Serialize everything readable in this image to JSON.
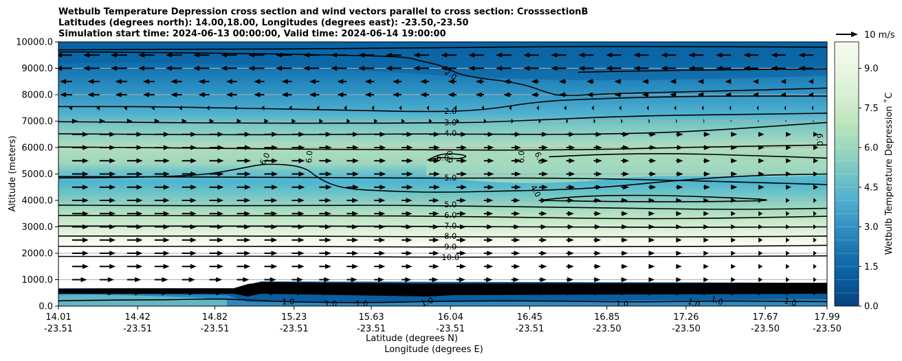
{
  "chart_data": {
    "type": "heatmap",
    "title_lines": [
      "Wetbulb Temperature Depression cross section and wind vectors parallel to cross section: CrosssectionB",
      "Latitudes (degrees north): 14.00,18.00, Longitudes (degrees east): -23.50,-23.50",
      "Simulation start time: 2024-06-13 00:00:00, Valid time: 2024-06-14 19:00:00"
    ],
    "ylabel": "Altitude (meters)",
    "xlabel_lat": "Latitude (degrees N)",
    "xlabel_lon": "Longitude (degrees E)",
    "ylim": [
      0,
      10000
    ],
    "y_ticks": [
      "0.0",
      "1000.0",
      "2000.0",
      "3000.0",
      "4000.0",
      "5000.0",
      "6000.0",
      "7000.0",
      "8000.0",
      "9000.0",
      "10000.0"
    ],
    "x_ticks_lat": [
      "14.01",
      "14.42",
      "14.82",
      "15.23",
      "15.63",
      "16.04",
      "16.45",
      "16.85",
      "17.26",
      "17.67",
      "17.99"
    ],
    "x_ticks_lon": [
      "-23.51",
      "-23.51",
      "-23.51",
      "-23.51",
      "-23.51",
      "-23.51",
      "-23.51",
      "-23.50",
      "-23.50",
      "-23.50",
      "-23.50"
    ],
    "colorbar": {
      "label": "Wetbulb Temperature Depression $^\\circ$C",
      "label_display": "Wetbulb Temperature Depression ˚C",
      "range": [
        0,
        10
      ],
      "ticks": [
        "0.0",
        "1.5",
        "3.0",
        "4.5",
        "6.0",
        "7.5",
        "9.0"
      ],
      "colormap": "GnBu_r"
    },
    "wind_key": {
      "label": "10 m/s"
    },
    "contour_levels": [
      1.0,
      2.0,
      3.0,
      4.0,
      5.0,
      6.0,
      7.0,
      8.0,
      9.0,
      10.0
    ],
    "contour_labels": [
      {
        "text": "2.0",
        "lat": 16.04,
        "alt": 8750,
        "rot": 35
      },
      {
        "text": "2.0",
        "lat": 16.04,
        "alt": 7360,
        "rot": 0
      },
      {
        "text": "3.0",
        "lat": 16.04,
        "alt": 6930,
        "rot": 0
      },
      {
        "text": "4.0",
        "lat": 16.04,
        "alt": 6530,
        "rot": 0
      },
      {
        "text": "6.0",
        "lat": 15.08,
        "alt": 5570,
        "rot": -62
      },
      {
        "text": "6.0",
        "lat": 15.31,
        "alt": 5650,
        "rot": -85
      },
      {
        "text": "6.0",
        "lat": 16.0,
        "alt": 5600,
        "rot": 0
      },
      {
        "text": "6.0",
        "lat": 16.04,
        "alt": 5650,
        "rot": -90
      },
      {
        "text": "6.0",
        "lat": 16.41,
        "alt": 5650,
        "rot": -90
      },
      {
        "text": "6.0",
        "lat": 16.5,
        "alt": 5600,
        "rot": 65
      },
      {
        "text": "6.0",
        "lat": 17.95,
        "alt": 6300,
        "rot": 90
      },
      {
        "text": "5.0",
        "lat": 16.04,
        "alt": 4850,
        "rot": 0
      },
      {
        "text": "4.0",
        "lat": 16.48,
        "alt": 4350,
        "rot": 62
      },
      {
        "text": "5.0",
        "lat": 16.04,
        "alt": 3830,
        "rot": 0
      },
      {
        "text": "6.0",
        "lat": 16.04,
        "alt": 3430,
        "rot": 0
      },
      {
        "text": "7.0",
        "lat": 16.04,
        "alt": 3030,
        "rot": 0
      },
      {
        "text": "8.0",
        "lat": 16.04,
        "alt": 2630,
        "rot": 0
      },
      {
        "text": "9.0",
        "lat": 16.04,
        "alt": 2230,
        "rot": 0
      },
      {
        "text": "10.0",
        "lat": 16.04,
        "alt": 1830,
        "rot": 0
      },
      {
        "text": "10.0",
        "lat": 16.05,
        "alt": 560,
        "rot": 0
      },
      {
        "text": "1.0",
        "lat": 15.2,
        "alt": 150,
        "rot": 0
      },
      {
        "text": "1.0",
        "lat": 15.42,
        "alt": 80,
        "rot": 0
      },
      {
        "text": "1.0",
        "lat": 15.58,
        "alt": 80,
        "rot": 0
      },
      {
        "text": "1.0",
        "lat": 15.92,
        "alt": 150,
        "rot": -20
      },
      {
        "text": "1.0",
        "lat": 16.93,
        "alt": 80,
        "rot": 0
      },
      {
        "text": "1.0",
        "lat": 17.3,
        "alt": 100,
        "rot": 20
      },
      {
        "text": "1.0",
        "lat": 17.42,
        "alt": 200,
        "rot": 20
      },
      {
        "text": "1.0",
        "lat": 17.8,
        "alt": 150,
        "rot": 15
      }
    ],
    "contours": [
      {
        "level": 2.0,
        "points": [
          [
            14.01,
            9620
          ],
          [
            14.5,
            9600
          ],
          [
            15.0,
            9560
          ],
          [
            15.3,
            9520
          ],
          [
            15.6,
            9480
          ],
          [
            15.82,
            9420
          ],
          [
            15.88,
            9280
          ],
          [
            16.0,
            9100
          ],
          [
            16.1,
            8700
          ],
          [
            16.4,
            8450
          ],
          [
            16.55,
            8050
          ],
          [
            16.62,
            7950
          ],
          [
            16.9,
            8050
          ],
          [
            17.5,
            8150
          ],
          [
            17.99,
            8250
          ]
        ]
      },
      {
        "level": 2.0,
        "points": [
          [
            14.01,
            9700
          ],
          [
            14.8,
            9720
          ],
          [
            15.5,
            9740
          ],
          [
            16.2,
            9800
          ],
          [
            16.8,
            9830
          ],
          [
            17.4,
            9820
          ],
          [
            17.99,
            9800
          ]
        ]
      },
      {
        "level": 2.0,
        "points": [
          [
            16.7,
            8850
          ],
          [
            17.0,
            8900
          ],
          [
            17.5,
            8950
          ],
          [
            17.99,
            8980
          ]
        ]
      },
      {
        "level": 2.0,
        "points": [
          [
            14.01,
            7550
          ],
          [
            14.5,
            7550
          ],
          [
            15.0,
            7480
          ],
          [
            15.5,
            7420
          ],
          [
            15.9,
            7350
          ],
          [
            16.2,
            7400
          ],
          [
            16.5,
            7750
          ],
          [
            16.8,
            7850
          ],
          [
            17.3,
            7950
          ],
          [
            17.99,
            7950
          ]
        ]
      },
      {
        "level": 3.0,
        "points": [
          [
            14.01,
            6980
          ],
          [
            14.5,
            6950
          ],
          [
            15.0,
            6920
          ],
          [
            15.5,
            6920
          ],
          [
            15.9,
            6930
          ],
          [
            16.2,
            6950
          ],
          [
            16.5,
            7050
          ],
          [
            17.0,
            7200
          ],
          [
            17.5,
            7250
          ],
          [
            17.99,
            7300
          ]
        ]
      },
      {
        "level": 4.0,
        "points": [
          [
            14.01,
            6520
          ],
          [
            14.5,
            6500
          ],
          [
            15.0,
            6480
          ],
          [
            15.5,
            6500
          ],
          [
            15.9,
            6520
          ],
          [
            16.3,
            6500
          ],
          [
            16.8,
            6500
          ],
          [
            17.3,
            6600
          ],
          [
            17.99,
            6950
          ]
        ]
      },
      {
        "level": 6.0,
        "points": [
          [
            14.01,
            6020
          ],
          [
            14.5,
            6000
          ],
          [
            15.0,
            5950
          ],
          [
            15.5,
            5930
          ],
          [
            15.9,
            5920
          ],
          [
            16.3,
            5900
          ],
          [
            16.8,
            5920
          ],
          [
            17.2,
            6000
          ],
          [
            17.99,
            6100
          ]
        ]
      },
      {
        "level": 6.0,
        "points": [
          [
            14.01,
            4850
          ],
          [
            14.4,
            4870
          ],
          [
            14.75,
            4950
          ],
          [
            14.95,
            5200
          ],
          [
            15.08,
            5400
          ],
          [
            15.28,
            5300
          ],
          [
            15.36,
            4800
          ],
          [
            15.48,
            4450
          ],
          [
            15.7,
            4350
          ],
          [
            15.98,
            4300
          ],
          [
            16.3,
            4350
          ],
          [
            16.6,
            4400
          ],
          [
            16.85,
            4500
          ],
          [
            17.2,
            4750
          ],
          [
            17.6,
            4950
          ],
          [
            17.99,
            5000
          ]
        ]
      },
      {
        "level": 6.0,
        "points": [
          [
            15.92,
            5520
          ],
          [
            16.0,
            5650
          ],
          [
            16.08,
            5550
          ],
          [
            16.14,
            5700
          ],
          [
            16.0,
            5800
          ],
          [
            15.92,
            5520
          ]
        ]
      },
      {
        "level": 6.0,
        "points": [
          [
            16.55,
            5650
          ],
          [
            16.85,
            5750
          ],
          [
            17.2,
            5780
          ],
          [
            17.6,
            5700
          ],
          [
            17.99,
            5600
          ]
        ]
      },
      {
        "level": 5.0,
        "points": [
          [
            14.01,
            4900
          ],
          [
            15.0,
            4880
          ],
          [
            15.5,
            4860
          ],
          [
            16.0,
            4840
          ],
          [
            16.5,
            4850
          ],
          [
            17.0,
            4800
          ],
          [
            17.5,
            4700
          ],
          [
            17.99,
            4600
          ]
        ]
      },
      {
        "level": 4.0,
        "points": [
          [
            16.5,
            4000
          ],
          [
            16.62,
            4100
          ],
          [
            16.8,
            4180
          ],
          [
            17.1,
            4200
          ],
          [
            17.5,
            4100
          ],
          [
            17.75,
            4000
          ],
          [
            17.4,
            3950
          ],
          [
            16.9,
            3950
          ],
          [
            16.5,
            4000
          ]
        ]
      },
      {
        "level": 5.0,
        "points": [
          [
            14.01,
            3820
          ],
          [
            14.6,
            3800
          ],
          [
            15.1,
            3800
          ],
          [
            15.6,
            3820
          ],
          [
            16.0,
            3800
          ],
          [
            16.5,
            3750
          ],
          [
            17.0,
            3700
          ],
          [
            17.5,
            3650
          ],
          [
            17.99,
            3700
          ]
        ]
      },
      {
        "level": 6.0,
        "points": [
          [
            14.01,
            3430
          ],
          [
            14.6,
            3420
          ],
          [
            15.1,
            3420
          ],
          [
            15.6,
            3420
          ],
          [
            16.0,
            3400
          ],
          [
            16.5,
            3350
          ],
          [
            17.0,
            3300
          ],
          [
            17.5,
            3330
          ],
          [
            17.99,
            3400
          ]
        ]
      },
      {
        "level": 7.0,
        "points": [
          [
            14.01,
            3030
          ],
          [
            14.6,
            3030
          ],
          [
            15.1,
            3030
          ],
          [
            15.6,
            3030
          ],
          [
            16.0,
            3010
          ],
          [
            16.5,
            3000
          ],
          [
            17.0,
            2980
          ],
          [
            17.5,
            2980
          ],
          [
            17.99,
            3000
          ]
        ]
      },
      {
        "level": 8.0,
        "points": [
          [
            14.01,
            2650
          ],
          [
            14.6,
            2650
          ],
          [
            15.1,
            2650
          ],
          [
            15.6,
            2640
          ],
          [
            16.0,
            2620
          ],
          [
            16.5,
            2620
          ],
          [
            17.0,
            2620
          ],
          [
            17.5,
            2620
          ],
          [
            17.99,
            2650
          ]
        ]
      },
      {
        "level": 9.0,
        "points": [
          [
            14.01,
            2260
          ],
          [
            14.6,
            2260
          ],
          [
            15.1,
            2260
          ],
          [
            15.6,
            2250
          ],
          [
            16.0,
            2230
          ],
          [
            16.5,
            2250
          ],
          [
            17.0,
            2250
          ],
          [
            17.5,
            2260
          ],
          [
            17.99,
            2300
          ]
        ]
      },
      {
        "level": 10.0,
        "points": [
          [
            14.01,
            1880
          ],
          [
            14.6,
            1880
          ],
          [
            15.1,
            1890
          ],
          [
            15.6,
            1870
          ],
          [
            16.0,
            1850
          ],
          [
            16.5,
            1860
          ],
          [
            17.0,
            1870
          ],
          [
            17.5,
            1880
          ],
          [
            17.99,
            1900
          ]
        ]
      },
      {
        "level": 1.0,
        "points": [
          [
            14.01,
            200
          ],
          [
            14.3,
            230
          ],
          [
            14.6,
            240
          ],
          [
            14.82,
            280
          ],
          [
            15.0,
            230
          ],
          [
            15.2,
            160
          ],
          [
            15.6,
            120
          ],
          [
            16.0,
            190
          ],
          [
            16.5,
            200
          ],
          [
            17.0,
            150
          ],
          [
            17.4,
            200
          ],
          [
            17.8,
            180
          ],
          [
            17.99,
            170
          ]
        ]
      }
    ]
  }
}
